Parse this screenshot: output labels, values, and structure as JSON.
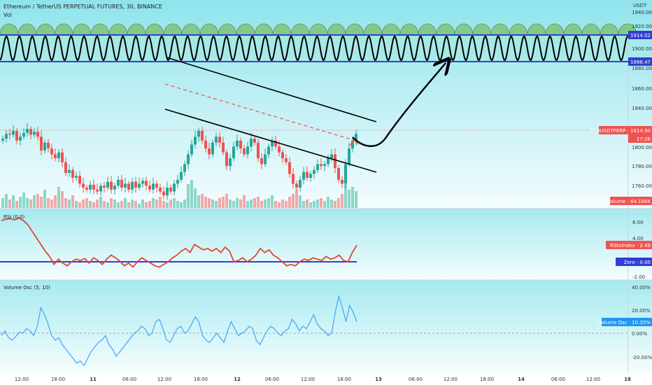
{
  "header": {
    "title": "Ethereum / TetherUS PERPETUAL FUTURES, 30, BINANCE",
    "sub": "Vol",
    "currency": "USDT"
  },
  "price_axis": {
    "ticks": [
      "1940.00",
      "1920.00",
      "1900.00",
      "1880.00",
      "1860.00",
      "1840.00",
      "1820.00",
      "1800.00",
      "1780.00",
      "1760.00"
    ],
    "labels": [
      {
        "text": "1914.02",
        "color": "#2f3fd4"
      },
      {
        "text": "1886.47",
        "color": "#2f3fd4"
      },
      {
        "text": "ETHUSDTPERP · 1814.90",
        "color": "#ef5350"
      },
      {
        "text": "17:26",
        "color": "#ef5350"
      },
      {
        "text": "Volume · 44.186K",
        "color": "#ef5350"
      }
    ]
  },
  "rsi_axis": {
    "title": "RSI (0.0)",
    "ticks": [
      "6.00",
      "4.00",
      "-2.00"
    ],
    "labels": [
      {
        "text": "RStoIndex · 2.49",
        "color": "#ef5350"
      },
      {
        "text": "Zero · 0.00",
        "color": "#2f3fd4"
      }
    ]
  },
  "osc_axis": {
    "title": "Volume Osc (5, 10)",
    "ticks": [
      "40.00%",
      "20.00%",
      "0.00%",
      "-20.00%"
    ],
    "labels": [
      {
        "text": "Volume Osc · 10.35%",
        "color": "#2196f3"
      }
    ]
  },
  "time_axis": [
    "12:00",
    "18:00",
    "11",
    "06:00",
    "12:00",
    "18:00",
    "12",
    "06:00",
    "12:00",
    "18:00",
    "13",
    "06:00",
    "12:00",
    "18:00",
    "14",
    "06:00",
    "12:00",
    "18"
  ],
  "colors": {
    "bg_top": "#8ee4ec",
    "bg_bottom": "#f4fcfd",
    "up": "#26a69a",
    "down": "#ef5350",
    "band_line": "#2f3fd4",
    "rsi_line": "#e5452f",
    "osc_line": "#42a5f5"
  },
  "chart_data": [
    {
      "type": "candlestick",
      "title": "Ethereum / TetherUS PERPETUAL FUTURES, 30, BINANCE",
      "ylim": [
        1750,
        1946
      ],
      "bands": [
        1914.02,
        1886.47
      ],
      "last_price": 1814.9,
      "close": [
        1810,
        1815,
        1814,
        1818,
        1808,
        1812,
        1816,
        1820,
        1814,
        1817,
        1812,
        1798,
        1806,
        1800,
        1794,
        1790,
        1796,
        1786,
        1775,
        1778,
        1770,
        1772,
        1764,
        1760,
        1758,
        1763,
        1758,
        1756,
        1762,
        1760,
        1766,
        1758,
        1762,
        1768,
        1760,
        1764,
        1758,
        1766,
        1760,
        1764,
        1767,
        1762,
        1758,
        1764,
        1760,
        1756,
        1752,
        1760,
        1756,
        1764,
        1768,
        1776,
        1784,
        1794,
        1804,
        1812,
        1818,
        1808,
        1800,
        1794,
        1806,
        1812,
        1806,
        1796,
        1782,
        1790,
        1802,
        1808,
        1800,
        1794,
        1802,
        1810,
        1806,
        1790,
        1784,
        1794,
        1802,
        1808,
        1802,
        1796,
        1790,
        1786,
        1774,
        1764,
        1760,
        1768,
        1776,
        1770,
        1774,
        1778,
        1784,
        1782,
        1784,
        1790,
        1794,
        1780,
        1768,
        1764,
        1784,
        1800,
        1808,
        1814.9
      ]
    },
    {
      "type": "bar",
      "series": [
        {
          "name": "Volume",
          "last": "44.186K"
        }
      ],
      "values": [
        14,
        20,
        12,
        18,
        10,
        16,
        22,
        14,
        12,
        18,
        20,
        16,
        26,
        14,
        12,
        18,
        30,
        24,
        14,
        12,
        18,
        10,
        8,
        12,
        14,
        10,
        8,
        12,
        16,
        10,
        8,
        14,
        12,
        8,
        10,
        14,
        8,
        12,
        10,
        6,
        12,
        8,
        10,
        14,
        12,
        16,
        10,
        8,
        12,
        14,
        10,
        8,
        12,
        34,
        40,
        28,
        18,
        20,
        16,
        14,
        12,
        10,
        14,
        16,
        20,
        12,
        10,
        14,
        12,
        18,
        10,
        12,
        14,
        16,
        10,
        12,
        14,
        18,
        10,
        8,
        12,
        10,
        16,
        20,
        26,
        18,
        10,
        12,
        8,
        10,
        12,
        14,
        10,
        16,
        12,
        10,
        14,
        20,
        34,
        26,
        30,
        24
      ]
    },
    {
      "type": "line",
      "series": [
        {
          "name": "RStoIndex",
          "last": 2.49
        },
        {
          "name": "Zero",
          "last": 0.0
        }
      ],
      "values": [
        6.2,
        6.4,
        6.5,
        6.3,
        6.6,
        6.2,
        5.6,
        4.6,
        3.6,
        2.6,
        1.6,
        0.8,
        -0.4,
        0.4,
        -0.2,
        -0.6,
        0.0,
        0.4,
        0.2,
        0.5,
        -0.2,
        0.6,
        0.2,
        -0.4,
        0.4,
        1.0,
        0.6,
        0.1,
        -0.6,
        -0.2,
        -0.8,
        0.0,
        0.6,
        0.2,
        -0.2,
        -0.6,
        -0.8,
        -0.4,
        0.0,
        0.6,
        1.0,
        1.6,
        2.0,
        1.4,
        2.6,
        2.2,
        1.8,
        2.0,
        1.6,
        2.0,
        1.4,
        2.2,
        1.6,
        0.0,
        0.2,
        0.6,
        0.0,
        0.4,
        1.0,
        2.0,
        1.4,
        1.8,
        1.0,
        0.6,
        0.0,
        -0.6,
        -0.4,
        -0.6,
        0.0,
        0.4,
        0.2,
        0.6,
        0.4,
        0.2,
        0.8,
        0.4,
        0.6,
        1.0,
        0.2,
        0.0,
        1.4,
        2.5
      ]
    },
    {
      "type": "line",
      "series": [
        {
          "name": "Volume Osc",
          "last": 10.35
        }
      ],
      "values": [
        -2,
        2,
        -4,
        -6,
        -3,
        1,
        0,
        4,
        2,
        -2,
        6,
        22,
        16,
        8,
        -2,
        -6,
        -4,
        -10,
        -14,
        -18,
        -22,
        -26,
        -24,
        -28,
        -22,
        -16,
        -12,
        -8,
        -6,
        -2,
        -10,
        -14,
        -20,
        -16,
        -12,
        -8,
        -4,
        0,
        2,
        6,
        4,
        -2,
        0,
        10,
        12,
        4,
        -6,
        -8,
        -2,
        4,
        6,
        0,
        2,
        8,
        14,
        10,
        -2,
        -6,
        -8,
        -4,
        0,
        -4,
        -8,
        2,
        10,
        4,
        -2,
        0,
        2,
        6,
        4,
        -6,
        -10,
        -4,
        2,
        6,
        4,
        0,
        -2,
        2,
        4,
        12,
        8,
        2,
        6,
        4,
        10,
        16,
        8,
        4,
        2,
        -2,
        0,
        18,
        32,
        22,
        10,
        24,
        18,
        10
      ]
    }
  ]
}
